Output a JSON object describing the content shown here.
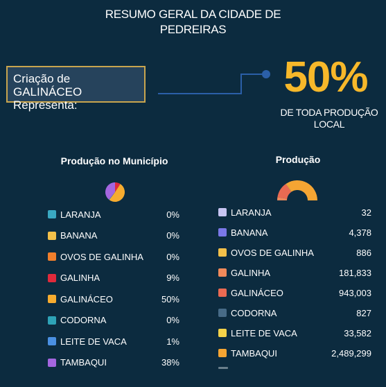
{
  "header": {
    "title_line1": "RESUMO GERAL DA CIDADE DE",
    "title_line2": "PEDREIRAS"
  },
  "callout": {
    "line1": "Criação de GALINÁCEO",
    "line2": "Representa:",
    "percent": "50%",
    "caption_line1": "DE TODA PRODUÇÃO",
    "caption_line2": "LOCAL",
    "accent_color": "#f7b82a",
    "border_color": "#c9a54e"
  },
  "left_panel": {
    "title": "Produção no Município",
    "items": [
      {
        "label": "LARANJA",
        "value": "0%",
        "color": "#3aa8c1"
      },
      {
        "label": "BANANA",
        "value": "0%",
        "color": "#f3c04a"
      },
      {
        "label": "OVOS DE GALINHA",
        "value": "0%",
        "color": "#f07f2c"
      },
      {
        "label": "GALINHA",
        "value": "9%",
        "color": "#e02a3b"
      },
      {
        "label": "GALINÁCEO",
        "value": "50%",
        "color": "#f7ac2f"
      },
      {
        "label": "CODORNA",
        "value": "0%",
        "color": "#2ea3b7"
      },
      {
        "label": "LEITE DE VACA",
        "value": "1%",
        "color": "#4a90e2"
      },
      {
        "label": "TAMBAQUI",
        "value": "38%",
        "color": "#a466e0"
      }
    ]
  },
  "right_panel": {
    "title": "Produção",
    "items": [
      {
        "label": "LARANJA",
        "value": "32",
        "color": "#c7c5f2"
      },
      {
        "label": "BANANA",
        "value": "4,378",
        "color": "#7b78e8"
      },
      {
        "label": "OVOS DE GALINHA",
        "value": "886",
        "color": "#f3c04a"
      },
      {
        "label": "GALINHA",
        "value": "181,833",
        "color": "#f08a5b"
      },
      {
        "label": "GALINÁCEO",
        "value": "943,003",
        "color": "#ea6a52"
      },
      {
        "label": "CODORNA",
        "value": "827",
        "color": "#476b87"
      },
      {
        "label": "LEITE DE VACA",
        "value": "33,582",
        "color": "#f4d24a"
      },
      {
        "label": "TAMBAQUI",
        "value": "2,489,299",
        "color": "#f5a533"
      }
    ]
  },
  "chart_data": [
    {
      "type": "pie",
      "categories": [
        "LARANJA",
        "BANANA",
        "OVOS DE GALINHA",
        "GALINHA",
        "GALINÁCEO",
        "CODORNA",
        "LEITE DE VACA",
        "TAMBAQUI"
      ],
      "values": [
        0,
        0,
        0,
        9,
        50,
        0,
        1,
        38
      ],
      "colors": [
        "#3aa8c1",
        "#f3c04a",
        "#f07f2c",
        "#e02a3b",
        "#f7ac2f",
        "#2ea3b7",
        "#4a90e2",
        "#a466e0"
      ]
    },
    {
      "type": "pie",
      "variant": "half-donut",
      "categories": [
        "LARANJA",
        "BANANA",
        "OVOS DE GALINHA",
        "GALINHA",
        "GALINÁCEO",
        "CODORNA",
        "LEITE DE VACA",
        "TAMBAQUI"
      ],
      "values": [
        32,
        4378,
        886,
        181833,
        943003,
        827,
        33582,
        2489299
      ],
      "colors": [
        "#c7c5f2",
        "#7b78e8",
        "#f3c04a",
        "#f08a5b",
        "#ea6a52",
        "#476b87",
        "#f4d24a",
        "#f5a533"
      ]
    }
  ]
}
